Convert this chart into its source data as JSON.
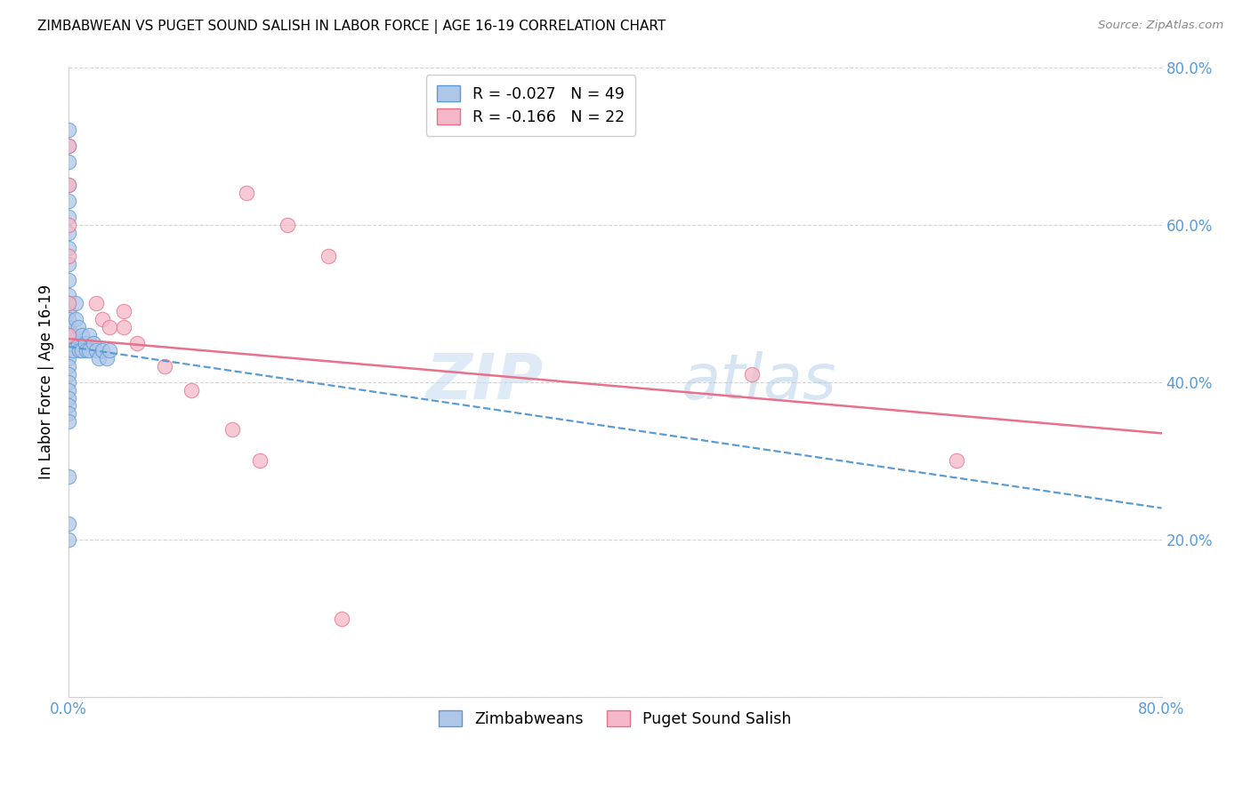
{
  "title": "ZIMBABWEAN VS PUGET SOUND SALISH IN LABOR FORCE | AGE 16-19 CORRELATION CHART",
  "source": "Source: ZipAtlas.com",
  "ylabel": "In Labor Force | Age 16-19",
  "xlim": [
    0.0,
    0.8
  ],
  "ylim": [
    0.0,
    0.8
  ],
  "blue_R": "-0.027",
  "blue_N": "49",
  "pink_R": "-0.166",
  "pink_N": "22",
  "blue_color": "#aec6e8",
  "pink_color": "#f5b8c8",
  "blue_edge_color": "#5b9bd5",
  "pink_edge_color": "#e8708a",
  "blue_line_color": "#5b9bd5",
  "pink_line_color": "#e8708a",
  "watermark_zip": "ZIP",
  "watermark_atlas": "atlas",
  "blue_scatter_x": [
    0.0,
    0.0,
    0.0,
    0.0,
    0.0,
    0.0,
    0.0,
    0.0,
    0.0,
    0.0,
    0.0,
    0.0,
    0.0,
    0.0,
    0.0,
    0.0,
    0.0,
    0.0,
    0.0,
    0.0,
    0.0,
    0.0,
    0.0,
    0.0,
    0.0,
    0.0,
    0.0,
    0.0,
    0.0,
    0.0,
    0.003,
    0.003,
    0.005,
    0.005,
    0.007,
    0.007,
    0.008,
    0.01,
    0.01,
    0.012,
    0.013,
    0.015,
    0.015,
    0.018,
    0.02,
    0.022,
    0.025,
    0.028,
    0.03
  ],
  "blue_scatter_y": [
    0.72,
    0.7,
    0.68,
    0.65,
    0.63,
    0.61,
    0.59,
    0.57,
    0.55,
    0.53,
    0.51,
    0.5,
    0.49,
    0.48,
    0.47,
    0.46,
    0.45,
    0.44,
    0.43,
    0.42,
    0.41,
    0.4,
    0.39,
    0.38,
    0.37,
    0.36,
    0.35,
    0.28,
    0.22,
    0.2,
    0.46,
    0.44,
    0.5,
    0.48,
    0.47,
    0.45,
    0.44,
    0.46,
    0.44,
    0.45,
    0.44,
    0.46,
    0.44,
    0.45,
    0.44,
    0.43,
    0.44,
    0.43,
    0.44
  ],
  "pink_scatter_x": [
    0.0,
    0.0,
    0.0,
    0.0,
    0.0,
    0.0,
    0.02,
    0.025,
    0.03,
    0.04,
    0.04,
    0.05,
    0.07,
    0.09,
    0.12,
    0.14,
    0.2,
    0.5,
    0.65,
    0.13,
    0.16,
    0.19
  ],
  "pink_scatter_y": [
    0.7,
    0.65,
    0.6,
    0.56,
    0.5,
    0.46,
    0.5,
    0.48,
    0.47,
    0.49,
    0.47,
    0.45,
    0.42,
    0.39,
    0.34,
    0.3,
    0.1,
    0.41,
    0.3,
    0.64,
    0.6,
    0.56
  ],
  "blue_trend_x": [
    0.0,
    0.8
  ],
  "blue_trend_y": [
    0.445,
    0.24
  ],
  "pink_trend_x": [
    0.0,
    0.8
  ],
  "pink_trend_y": [
    0.455,
    0.335
  ],
  "tick_color": "#5b9bd5",
  "grid_color": "#d0d0d0"
}
